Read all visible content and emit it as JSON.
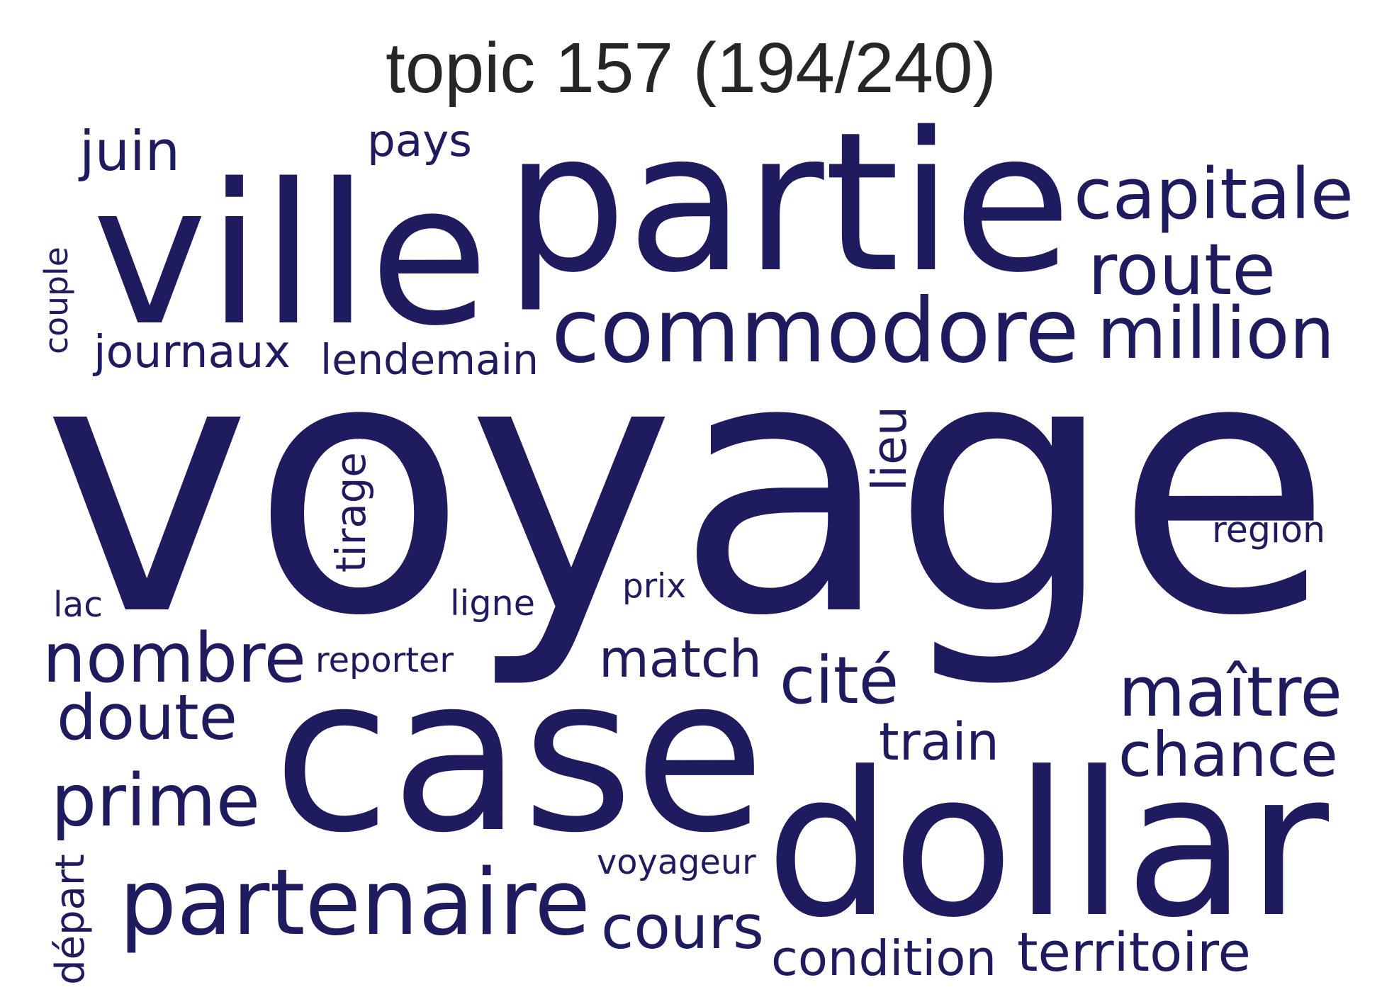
{
  "title": "topic 157 (194/240)",
  "color": "#1e1b5e",
  "words": [
    {
      "text": "voyage",
      "vertical": false
    },
    {
      "text": "partie",
      "vertical": false
    },
    {
      "text": "ville",
      "vertical": false
    },
    {
      "text": "case",
      "vertical": false
    },
    {
      "text": "dollar",
      "vertical": false
    },
    {
      "text": "commodore",
      "vertical": false
    },
    {
      "text": "capitale",
      "vertical": false
    },
    {
      "text": "route",
      "vertical": false
    },
    {
      "text": "million",
      "vertical": false
    },
    {
      "text": "partenaire",
      "vertical": false
    },
    {
      "text": "nombre",
      "vertical": false
    },
    {
      "text": "prime",
      "vertical": false
    },
    {
      "text": "doute",
      "vertical": false
    },
    {
      "text": "cité",
      "vertical": false
    },
    {
      "text": "maître",
      "vertical": false
    },
    {
      "text": "chance",
      "vertical": false
    },
    {
      "text": "territoire",
      "vertical": false
    },
    {
      "text": "condition",
      "vertical": false
    },
    {
      "text": "cours",
      "vertical": false
    },
    {
      "text": "match",
      "vertical": false
    },
    {
      "text": "train",
      "vertical": false
    },
    {
      "text": "juin",
      "vertical": false
    },
    {
      "text": "journaux",
      "vertical": false
    },
    {
      "text": "lendemain",
      "vertical": false
    },
    {
      "text": "pays",
      "vertical": false
    },
    {
      "text": "tirage",
      "vertical": true
    },
    {
      "text": "lieu",
      "vertical": true
    },
    {
      "text": "départ",
      "vertical": true
    },
    {
      "text": "couple",
      "vertical": true
    },
    {
      "text": "région",
      "vertical": false
    },
    {
      "text": "ligne",
      "vertical": false
    },
    {
      "text": "prix",
      "vertical": false
    },
    {
      "text": "lac",
      "vertical": false
    },
    {
      "text": "reporter",
      "vertical": false
    },
    {
      "text": "voyageur",
      "vertical": false
    }
  ]
}
